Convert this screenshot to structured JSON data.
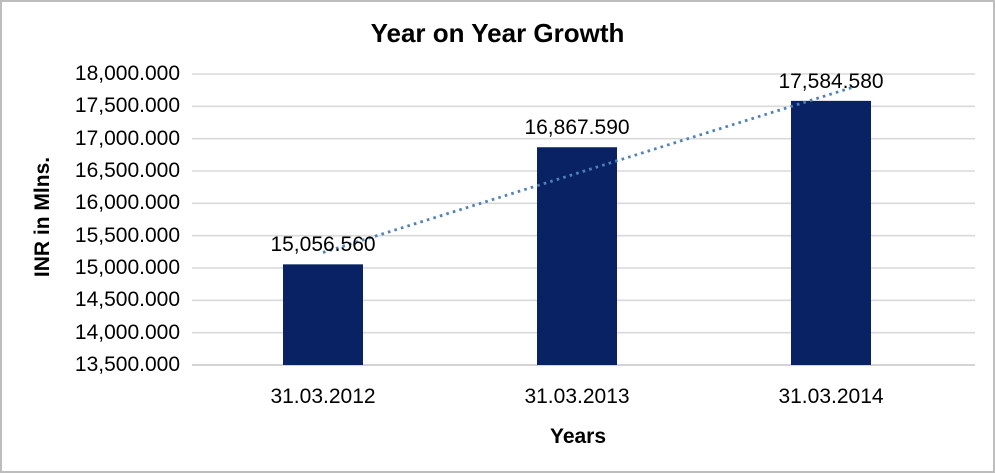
{
  "chart_data": {
    "type": "bar",
    "title": "Year on Year Growth",
    "xlabel": "Years",
    "ylabel": "INR in Mlns.",
    "categories": [
      "31.03.2012",
      "31.03.2013",
      "31.03.2014"
    ],
    "series": [
      {
        "name": "INR in Mlns.",
        "values": [
          15056.56,
          16867.59,
          17584.58
        ]
      }
    ],
    "data_labels": [
      "15,056.560",
      "16,867.590",
      "17,584.580"
    ],
    "ylim": [
      13500,
      18000
    ],
    "ytick_step": 500,
    "yticks": [
      {
        "value": 18000,
        "label": "18,000.000"
      },
      {
        "value": 17500,
        "label": "17,500.000"
      },
      {
        "value": 17000,
        "label": "17,000.000"
      },
      {
        "value": 16500,
        "label": "16,500.000"
      },
      {
        "value": 16000,
        "label": "16,000.000"
      },
      {
        "value": 15500,
        "label": "15,500.000"
      },
      {
        "value": 15000,
        "label": "15,000.000"
      },
      {
        "value": 14500,
        "label": "14,500.000"
      },
      {
        "value": 14000,
        "label": "14,000.000"
      },
      {
        "value": 13500,
        "label": "13,500.000"
      }
    ],
    "grid": true,
    "legend_position": "none",
    "colors": {
      "bar": "#082263",
      "trendline": "#4f81bd",
      "gridline": "#d9d9d9",
      "axis_line": "#c6c6c6",
      "text": "#000000",
      "background": "#ffffff"
    },
    "trendline": {
      "type": "linear",
      "style": "dotted",
      "start": {
        "category_index": 0.0,
        "value": 15240
      },
      "end": {
        "category_index": 2.09,
        "value": 17800
      }
    }
  }
}
